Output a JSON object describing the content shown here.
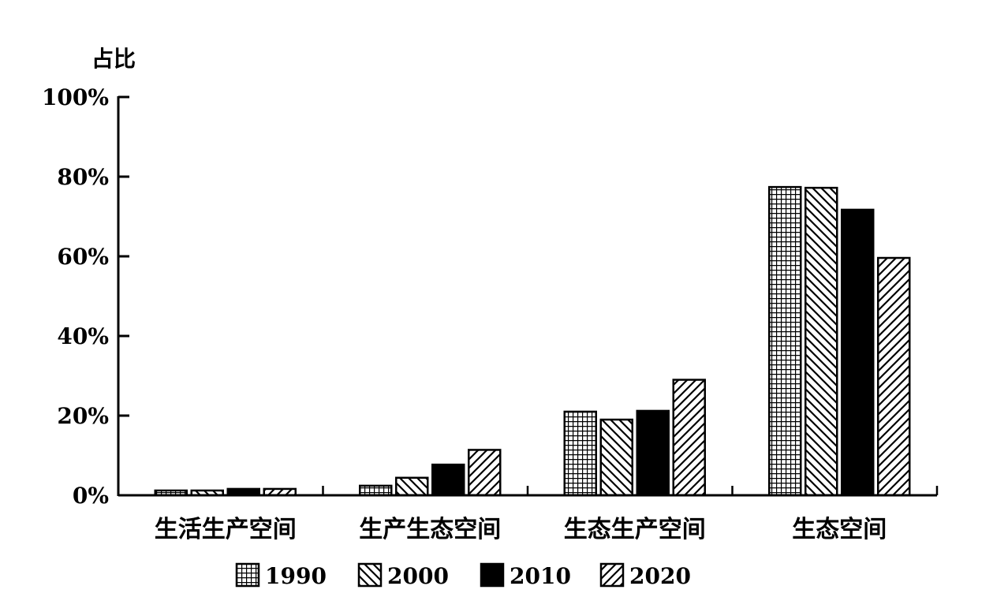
{
  "chart_data": {
    "type": "bar",
    "ylabel": "占比",
    "ylim": [
      0,
      100
    ],
    "yticks": [
      "0%",
      "20%",
      "40%",
      "60%",
      "80%",
      "100%"
    ],
    "ytick_values": [
      0,
      20,
      40,
      60,
      80,
      100
    ],
    "categories": [
      "生活生产空间",
      "生产生态空间",
      "生态生产空间",
      "生态空间"
    ],
    "series": [
      {
        "name": "1990",
        "pattern": "grid",
        "values": [
          1.2,
          2.4,
          21.0,
          77.4
        ]
      },
      {
        "name": "2000",
        "pattern": "backslash",
        "values": [
          1.2,
          4.4,
          19.0,
          77.2
        ]
      },
      {
        "name": "2010",
        "pattern": "solid",
        "values": [
          1.6,
          7.7,
          21.2,
          71.7
        ]
      },
      {
        "name": "2020",
        "pattern": "slash",
        "values": [
          1.6,
          11.4,
          29.0,
          59.6
        ]
      }
    ],
    "legend_position": "bottom",
    "grid": false,
    "colors": {
      "ink": "#000000",
      "background": "#ffffff"
    }
  }
}
